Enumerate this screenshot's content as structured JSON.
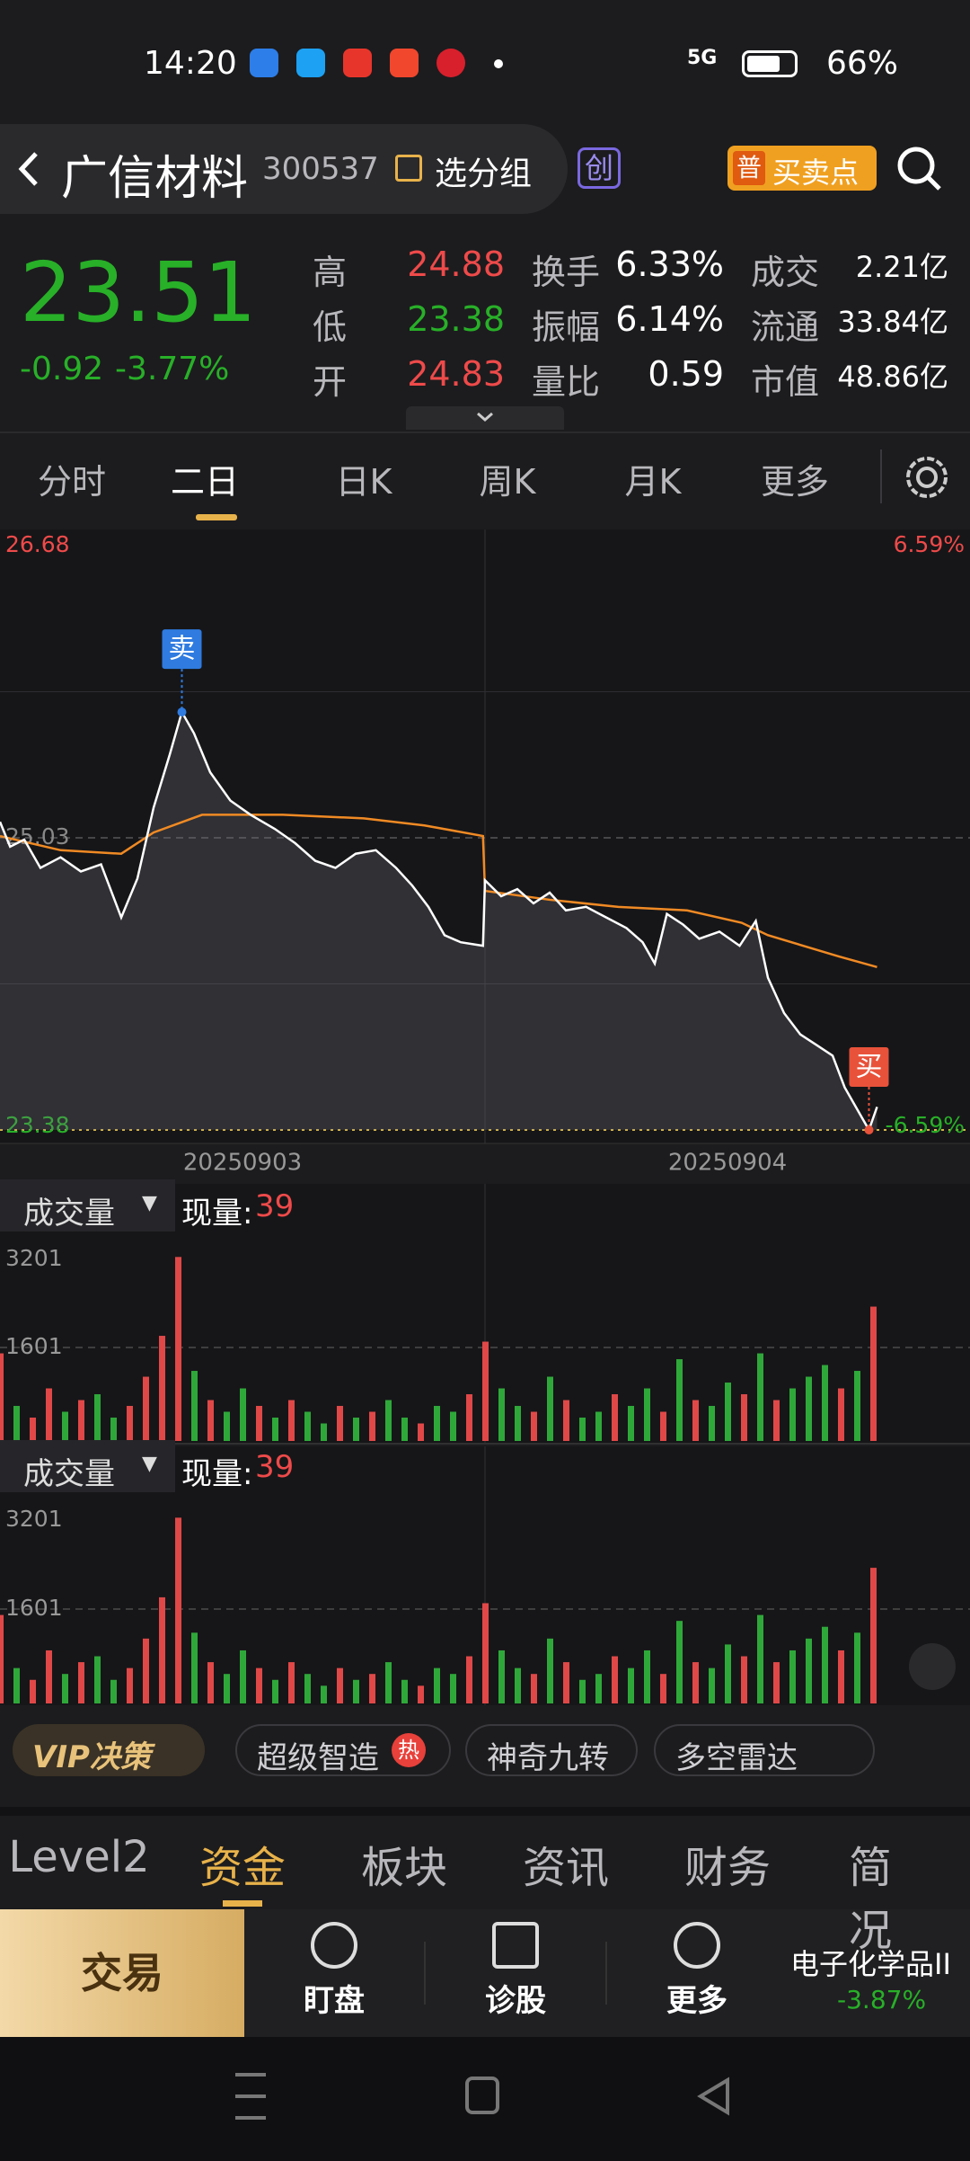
{
  "status_bar": {
    "time": "14:20",
    "network": "5G",
    "battery": "66%"
  },
  "header": {
    "name": "广信材料",
    "code": "300537",
    "group_button": "选分组",
    "board_badge": "创",
    "signal_badge": "普",
    "signal_button": "买卖点"
  },
  "quote": {
    "price": "23.51",
    "change": "-0.92",
    "change_pct": "-3.77%",
    "stats": [
      {
        "label": "高",
        "value": "24.88"
      },
      {
        "label": "换手",
        "value": "6.33%"
      },
      {
        "label": "成交",
        "value": "2.21亿"
      },
      {
        "label": "低",
        "value": "23.38"
      },
      {
        "label": "振幅",
        "value": "6.14%"
      },
      {
        "label": "流通",
        "value": "33.84亿"
      },
      {
        "label": "开",
        "value": "24.83"
      },
      {
        "label": "量比",
        "value": "0.59"
      },
      {
        "label": "市值",
        "value": "48.86亿"
      }
    ]
  },
  "period_tabs": {
    "items": [
      "分时",
      "二日",
      "日K",
      "周K",
      "月K",
      "更多"
    ],
    "active": 1
  },
  "chart_data": [
    {
      "type": "line",
      "xlim": [
        0,
        480
      ],
      "ylim": [
        23.38,
        26.68
      ],
      "yticks": [
        23.38,
        25.03,
        26.68
      ],
      "y2lim": [
        -6.59,
        6.59
      ],
      "y2ticks": [
        {
          "value": -6.59,
          "label": "-6.59%"
        },
        {
          "value": 6.59,
          "label": "6.59%"
        }
      ],
      "xticks": [
        {
          "value": 120,
          "label": "20250903"
        },
        {
          "value": 360,
          "label": "20250904"
        }
      ],
      "grid_lines": [
        24.205,
        25.855
      ],
      "series": [
        {
          "color": "#ffffff",
          "x": [
            0,
            5,
            12,
            20,
            30,
            40,
            50,
            60,
            68,
            76,
            84,
            90,
            96,
            104,
            114,
            124,
            136,
            146,
            156,
            166,
            176,
            186,
            196,
            204,
            212,
            220,
            228,
            239,
            240,
            248,
            256,
            264,
            272,
            280,
            290,
            300,
            310,
            318,
            324,
            330,
            338,
            346,
            356,
            366,
            374,
            380,
            388,
            396,
            404,
            412,
            418,
            424,
            430,
            434
          ],
          "values": [
            25.12,
            24.98,
            25.02,
            24.86,
            24.92,
            24.84,
            24.88,
            24.58,
            24.8,
            25.2,
            25.5,
            25.74,
            25.62,
            25.4,
            25.24,
            25.16,
            25.08,
            25.0,
            24.9,
            24.86,
            24.94,
            24.96,
            24.86,
            24.76,
            24.64,
            24.48,
            24.44,
            24.42,
            24.79,
            24.7,
            24.74,
            24.66,
            24.72,
            24.62,
            24.64,
            24.58,
            24.52,
            24.44,
            24.32,
            24.6,
            24.54,
            24.46,
            24.5,
            24.42,
            24.56,
            24.24,
            24.04,
            23.92,
            23.86,
            23.8,
            23.62,
            23.5,
            23.38,
            23.51
          ]
        },
        {
          "color": "#f08a24",
          "x": [
            0,
            30,
            60,
            76,
            100,
            140,
            180,
            210,
            239,
            240,
            272,
            306,
            340,
            367,
            380,
            415,
            434
          ],
          "values": [
            25.04,
            24.96,
            24.94,
            25.06,
            25.16,
            25.16,
            25.14,
            25.1,
            25.04,
            24.73,
            24.68,
            24.64,
            24.62,
            24.55,
            24.48,
            24.36,
            24.3
          ]
        }
      ],
      "annotations": [
        {
          "text": "卖",
          "x": 90,
          "y": 25.74,
          "color": "#2f7be0"
        },
        {
          "text": "买",
          "x": 430,
          "y": 23.38,
          "color": "#e8523a"
        }
      ]
    },
    {
      "type": "bar",
      "title": "成交量",
      "current_label": "现量:",
      "current_value": 39,
      "xlim": [
        0,
        480
      ],
      "ylim": [
        0,
        3201
      ],
      "yticks": [
        1601,
        3201
      ],
      "up_color": "#e04848",
      "down_color": "#2fa83a",
      "x": [
        0,
        8,
        16,
        24,
        32,
        40,
        48,
        56,
        64,
        72,
        80,
        88,
        96,
        104,
        112,
        120,
        128,
        136,
        144,
        152,
        160,
        168,
        176,
        184,
        192,
        200,
        208,
        216,
        224,
        232,
        240,
        248,
        256,
        264,
        272,
        280,
        288,
        296,
        304,
        312,
        320,
        328,
        336,
        344,
        352,
        360,
        368,
        376,
        384,
        392,
        400,
        408,
        416,
        424,
        432
      ],
      "values": [
        1500,
        600,
        400,
        900,
        500,
        700,
        800,
        400,
        600,
        1100,
        1800,
        3150,
        1200,
        700,
        500,
        900,
        600,
        400,
        700,
        500,
        300,
        600,
        400,
        500,
        700,
        400,
        300,
        600,
        500,
        800,
        1700,
        900,
        600,
        500,
        1100,
        700,
        400,
        500,
        800,
        600,
        900,
        500,
        1400,
        700,
        600,
        1000,
        800,
        1500,
        700,
        900,
        1100,
        1300,
        900,
        1200,
        2300
      ],
      "up": [
        1,
        0,
        1,
        1,
        0,
        1,
        0,
        0,
        1,
        1,
        1,
        1,
        0,
        1,
        0,
        0,
        1,
        0,
        1,
        0,
        0,
        1,
        0,
        1,
        0,
        0,
        1,
        0,
        0,
        1,
        1,
        0,
        0,
        1,
        0,
        1,
        0,
        0,
        1,
        0,
        0,
        1,
        0,
        1,
        0,
        0,
        1,
        0,
        1,
        0,
        0,
        0,
        1,
        0,
        1
      ]
    }
  ],
  "tool_chips": {
    "vip": "VIP决策",
    "items": [
      "超级智造",
      "神奇九转",
      "多空雷达"
    ],
    "hot": "热"
  },
  "info_tabs": {
    "items": [
      "Level2",
      "资金",
      "板块",
      "资讯",
      "财务",
      "简况"
    ],
    "active": 1
  },
  "toolbar": {
    "trade": "交易",
    "items": [
      "盯盘",
      "诊股",
      "更多"
    ],
    "sector": {
      "name": "电子化学品II",
      "change": "-3.87%"
    }
  }
}
